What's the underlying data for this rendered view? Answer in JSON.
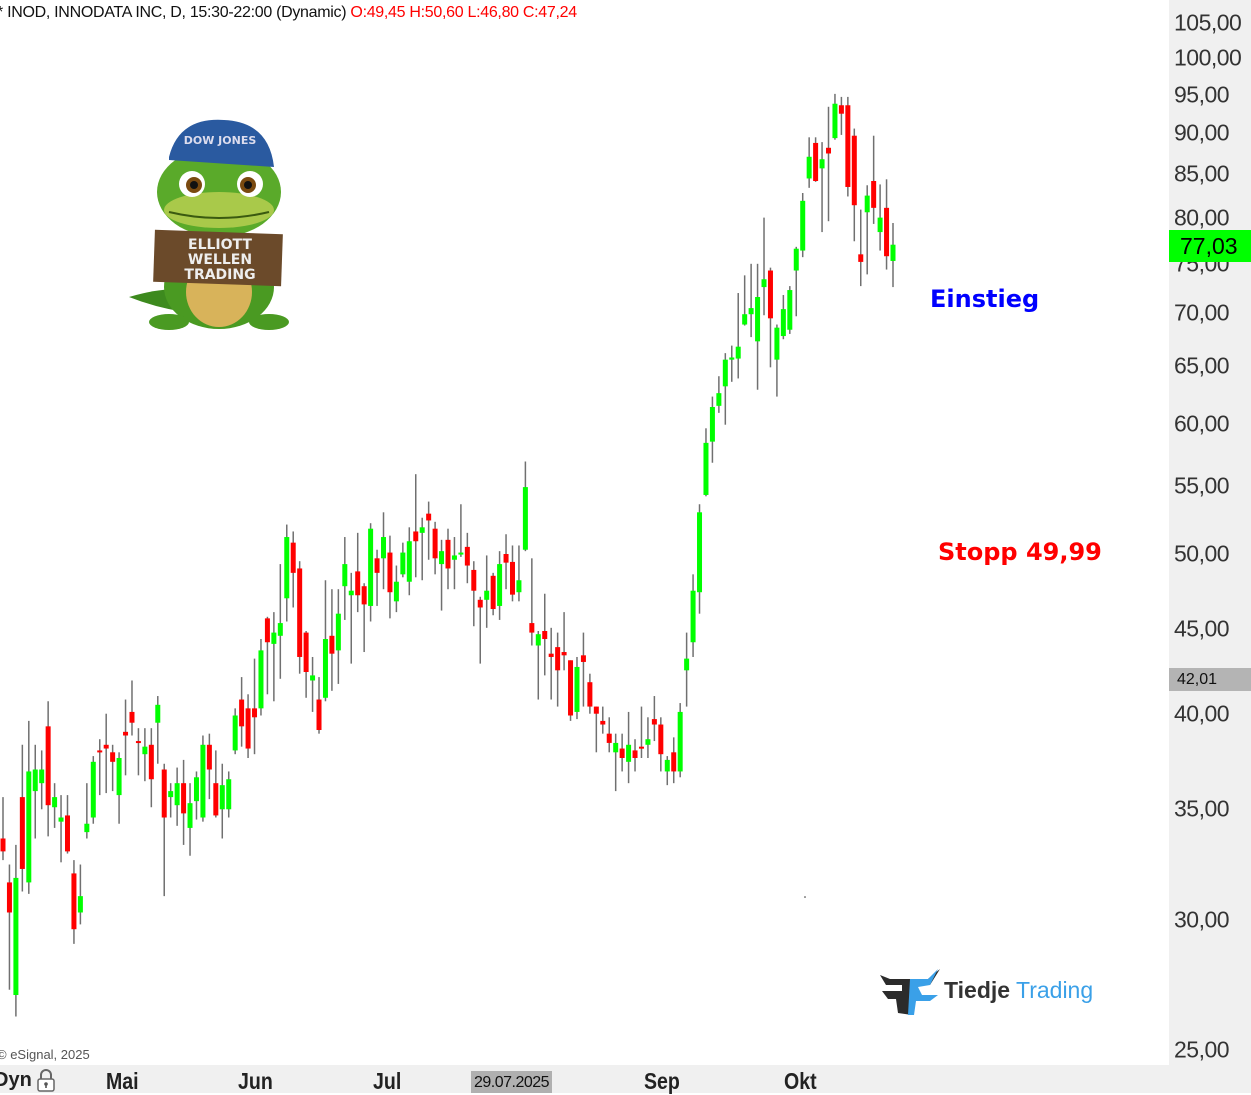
{
  "header": {
    "title": "* INOD, INNODATA INC, D, 15:30-22:00 (Dynamic)",
    "ohlc": "O:49,45 H:50,60 L:46,80 C:47,24"
  },
  "annotations": {
    "entry": "Einstieg",
    "stop": "Stopp 49,99"
  },
  "mascot": {
    "cap_text": "DOW JONES",
    "sign_text": [
      "ELLIOTT",
      "WELLEN",
      "TRADING"
    ]
  },
  "logo": {
    "part1": "Tiedje",
    "part2": "Trading"
  },
  "copyright": "© eSignal, 2025",
  "x_axis": {
    "mode": "Dyn",
    "months": [
      "Mai",
      "Jun",
      "Jul",
      "Sep",
      "Okt"
    ],
    "highlight_date": "29.07.2025"
  },
  "price_labels": {
    "last": "77,03",
    "crosshair": "42,01"
  },
  "colors": {
    "up": "#00ff00",
    "down": "#ff0000",
    "wick": "#707070",
    "entry": "#0000ff",
    "stop": "#ff0000",
    "last_price_bg": "#00ff00"
  },
  "chart_data": {
    "type": "candlestick",
    "symbol": "INOD",
    "scale": "log",
    "ylim": [
      25,
      105
    ],
    "y_ticks": [
      "105,00",
      "100,00",
      "95,00",
      "90,00",
      "85,00",
      "80,00",
      "75,00",
      "70,00",
      "65,00",
      "60,00",
      "55,00",
      "50,00",
      "45,00",
      "40,00",
      "35,00",
      "30,00",
      "25,00"
    ],
    "grid": false,
    "ohlc": [
      [
        33.6,
        35.6,
        32.6,
        33.0
      ],
      [
        31.6,
        32.4,
        27.2,
        30.3
      ],
      [
        27.0,
        33.3,
        26.2,
        31.8
      ],
      [
        35.6,
        38.3,
        31.2,
        32.2
      ],
      [
        31.6,
        39.6,
        31.1,
        36.9
      ],
      [
        35.9,
        38.3,
        33.6,
        37.0
      ],
      [
        36.3,
        38.0,
        35.0,
        37.0
      ],
      [
        39.3,
        40.7,
        33.7,
        35.2
      ],
      [
        35.1,
        36.3,
        34.1,
        35.6
      ],
      [
        34.4,
        35.7,
        32.5,
        34.6
      ],
      [
        34.7,
        35.7,
        32.9,
        33.0
      ],
      [
        32.0,
        32.6,
        29.0,
        29.6
      ],
      [
        30.3,
        32.4,
        29.8,
        31.0
      ],
      [
        33.9,
        36.3,
        33.6,
        34.3
      ],
      [
        34.6,
        37.7,
        34.3,
        37.4
      ],
      [
        38.0,
        38.6,
        35.7,
        37.9
      ],
      [
        38.3,
        40.0,
        35.8,
        38.1
      ],
      [
        37.9,
        38.3,
        35.9,
        37.4
      ],
      [
        35.7,
        37.9,
        34.3,
        37.6
      ],
      [
        39.0,
        40.8,
        36.7,
        38.8
      ],
      [
        40.1,
        41.9,
        38.8,
        39.5
      ],
      [
        38.5,
        39.2,
        36.7,
        38.4
      ],
      [
        37.8,
        39.2,
        36.4,
        38.2
      ],
      [
        38.3,
        39.2,
        35.1,
        36.5
      ],
      [
        39.5,
        41.0,
        37.3,
        40.5
      ],
      [
        37.0,
        37.3,
        31.0,
        34.6
      ],
      [
        35.6,
        36.3,
        34.6,
        35.9
      ],
      [
        35.2,
        37.1,
        34.2,
        36.3
      ],
      [
        36.3,
        37.5,
        33.3,
        34.8
      ],
      [
        34.1,
        36.3,
        32.8,
        35.3
      ],
      [
        35.4,
        36.9,
        34.5,
        36.6
      ],
      [
        34.6,
        38.8,
        34.4,
        38.3
      ],
      [
        38.3,
        38.9,
        35.5,
        37.0
      ],
      [
        36.3,
        38.0,
        34.6,
        34.7
      ],
      [
        35.0,
        37.3,
        33.6,
        36.2
      ],
      [
        35.0,
        36.9,
        34.6,
        36.5
      ],
      [
        38.0,
        40.3,
        37.8,
        39.9
      ],
      [
        40.8,
        42.1,
        38.2,
        39.3
      ],
      [
        40.3,
        41.1,
        37.6,
        38.1
      ],
      [
        40.3,
        43.2,
        37.8,
        39.8
      ],
      [
        40.3,
        44.4,
        39.9,
        43.7
      ],
      [
        45.7,
        45.8,
        41.1,
        44.2
      ],
      [
        44.1,
        46.1,
        40.7,
        44.8
      ],
      [
        44.6,
        49.3,
        42.0,
        45.4
      ],
      [
        47.0,
        52.1,
        45.5,
        51.2
      ],
      [
        50.8,
        51.6,
        46.4,
        48.7
      ],
      [
        49.0,
        49.5,
        42.3,
        43.3
      ],
      [
        44.8,
        44.9,
        40.9,
        42.4
      ],
      [
        41.9,
        43.3,
        40.1,
        42.2
      ],
      [
        40.8,
        42.1,
        38.9,
        39.1
      ],
      [
        40.9,
        48.2,
        40.7,
        44.4
      ],
      [
        44.6,
        47.6,
        41.3,
        43.5
      ],
      [
        43.7,
        47.6,
        41.7,
        46.0
      ],
      [
        47.8,
        51.2,
        45.6,
        49.3
      ],
      [
        47.2,
        48.7,
        42.9,
        47.5
      ],
      [
        48.8,
        51.5,
        46.1,
        47.2
      ],
      [
        47.8,
        48.0,
        43.6,
        46.6
      ],
      [
        46.5,
        52.2,
        45.5,
        51.8
      ],
      [
        49.7,
        50.3,
        46.5,
        48.7
      ],
      [
        49.7,
        53.0,
        47.6,
        51.2
      ],
      [
        50.1,
        51.3,
        45.7,
        47.4
      ],
      [
        46.8,
        49.2,
        46.1,
        48.1
      ],
      [
        48.6,
        50.8,
        48.4,
        50.1
      ],
      [
        48.1,
        51.9,
        47.2,
        50.9
      ],
      [
        51.6,
        55.9,
        48.4,
        50.9
      ],
      [
        51.5,
        52.6,
        48.2,
        51.9
      ],
      [
        52.9,
        53.8,
        49.6,
        52.4
      ],
      [
        51.8,
        52.3,
        48.6,
        49.7
      ],
      [
        49.3,
        51.0,
        46.2,
        50.2
      ],
      [
        51.0,
        51.8,
        47.6,
        49.0
      ],
      [
        49.6,
        51.2,
        47.6,
        49.9
      ],
      [
        50.0,
        53.6,
        49.8,
        50.1
      ],
      [
        50.5,
        51.5,
        48.0,
        49.2
      ],
      [
        48.9,
        49.5,
        45.2,
        47.5
      ],
      [
        46.9,
        47.1,
        42.9,
        46.4
      ],
      [
        46.9,
        49.9,
        45.1,
        47.5
      ],
      [
        48.5,
        48.7,
        45.9,
        46.3
      ],
      [
        46.5,
        50.2,
        45.6,
        49.3
      ],
      [
        50.0,
        51.4,
        47.6,
        49.4
      ],
      [
        49.45,
        50.6,
        46.8,
        47.24
      ],
      [
        47.4,
        50.6,
        46.8,
        48.2
      ],
      [
        50.3,
        56.9,
        50.2,
        54.9
      ],
      [
        45.4,
        49.7,
        44.0,
        44.8
      ],
      [
        44.0,
        44.9,
        40.8,
        44.7
      ],
      [
        44.9,
        47.3,
        42.2,
        44.4
      ],
      [
        43.5,
        45.1,
        40.8,
        43.3
      ],
      [
        43.9,
        44.8,
        40.4,
        42.5
      ],
      [
        43.6,
        46.1,
        42.5,
        43.4
      ],
      [
        43.1,
        43.1,
        39.6,
        39.9
      ],
      [
        40.1,
        43.3,
        39.7,
        42.7
      ],
      [
        43.4,
        44.8,
        40.4,
        43.0
      ],
      [
        41.8,
        42.3,
        40.0,
        40.4
      ],
      [
        40.4,
        40.4,
        37.9,
        40.0
      ],
      [
        39.6,
        40.4,
        38.9,
        39.4
      ],
      [
        38.9,
        39.8,
        37.9,
        38.4
      ],
      [
        37.9,
        38.9,
        35.9,
        38.4
      ],
      [
        38.1,
        38.9,
        36.9,
        37.6
      ],
      [
        37.4,
        40.1,
        36.3,
        38.3
      ],
      [
        38.0,
        38.6,
        36.9,
        37.6
      ],
      [
        38.2,
        40.4,
        37.6,
        38.1
      ],
      [
        38.3,
        39.8,
        37.6,
        38.6
      ],
      [
        39.7,
        41.0,
        38.5,
        39.4
      ],
      [
        39.4,
        39.8,
        36.9,
        37.8
      ],
      [
        36.9,
        37.7,
        36.2,
        37.5
      ],
      [
        37.9,
        38.7,
        36.3,
        36.9
      ],
      [
        36.9,
        40.6,
        36.6,
        40.1
      ],
      [
        42.5,
        44.8,
        40.4,
        43.2
      ],
      [
        44.2,
        48.6,
        43.3,
        47.5
      ],
      [
        47.4,
        53.6,
        46.0,
        53.0
      ],
      [
        54.3,
        59.6,
        54.2,
        58.4
      ],
      [
        58.5,
        62.3,
        56.8,
        61.4
      ],
      [
        61.5,
        64.1,
        60.9,
        62.6
      ],
      [
        63.2,
        66.2,
        59.9,
        65.6
      ],
      [
        65.6,
        66.9,
        63.6,
        65.8
      ],
      [
        65.7,
        72.0,
        63.9,
        66.8
      ],
      [
        68.9,
        73.8,
        68.8,
        69.9
      ],
      [
        69.9,
        75.0,
        67.7,
        70.5
      ],
      [
        67.3,
        75.0,
        62.9,
        71.6
      ],
      [
        72.6,
        80.0,
        69.8,
        73.4
      ],
      [
        74.3,
        74.6,
        64.9,
        69.5
      ],
      [
        65.6,
        68.9,
        62.3,
        68.6
      ],
      [
        67.8,
        71.8,
        67.5,
        70.4
      ],
      [
        68.4,
        72.7,
        68.0,
        72.3
      ],
      [
        74.3,
        76.8,
        69.7,
        76.6
      ],
      [
        76.4,
        82.8,
        75.7,
        81.9
      ],
      [
        84.5,
        89.5,
        83.4,
        87.1
      ],
      [
        88.8,
        89.5,
        84.1,
        84.2
      ],
      [
        85.7,
        88.9,
        78.4,
        86.8
      ],
      [
        88.2,
        93.4,
        79.6,
        87.5
      ],
      [
        89.4,
        95.1,
        89.2,
        93.8
      ],
      [
        93.6,
        94.7,
        89.8,
        92.5
      ],
      [
        93.6,
        94.7,
        82.4,
        83.5
      ],
      [
        89.7,
        90.6,
        77.4,
        81.4
      ],
      [
        76.0,
        80.9,
        72.7,
        75.2
      ],
      [
        80.6,
        83.7,
        73.9,
        82.5
      ],
      [
        84.2,
        89.7,
        79.3,
        81.1
      ],
      [
        78.4,
        83.8,
        76.4,
        80.0
      ],
      [
        81.1,
        84.4,
        74.4,
        75.8
      ],
      [
        75.3,
        79.4,
        72.6,
        77.03
      ]
    ]
  }
}
